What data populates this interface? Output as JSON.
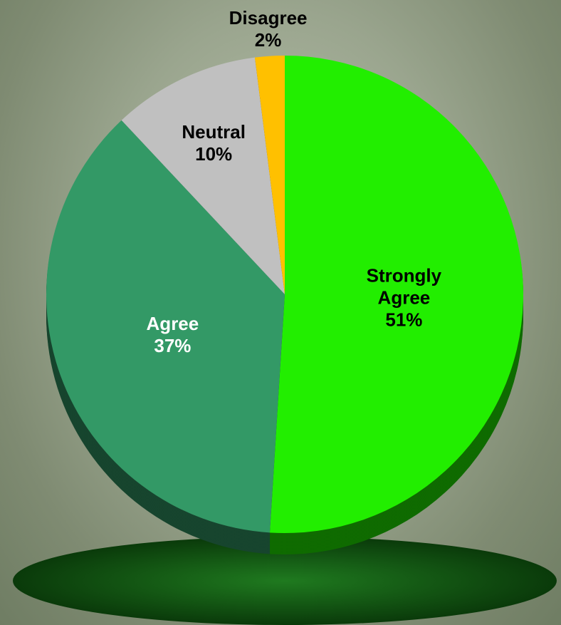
{
  "chart_data": {
    "type": "pie",
    "categories": [
      "Strongly Agree",
      "Agree",
      "Neutral",
      "Disagree"
    ],
    "values": [
      51,
      37,
      10,
      2
    ],
    "value_labels": [
      "51%",
      "37%",
      "10%",
      "2%"
    ],
    "colors": [
      "#22ee00",
      "#339966",
      "#c0c0c0",
      "#ffc000"
    ]
  }
}
